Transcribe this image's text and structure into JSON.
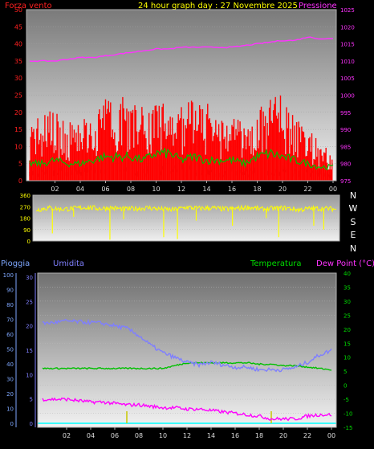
{
  "header": {
    "left_title": "Forza vento",
    "center_title": "24 hour graph day : 27 Novembre 2025",
    "right_title": "Pressione"
  },
  "colors": {
    "gust": "#ff0000",
    "avg_wind": "#00c000",
    "wind_band": "#c8ffc8",
    "pressure": "#ff33ff",
    "direction": "#ffff00",
    "humidity": "#7f7fff",
    "temperature": "#00c000",
    "dewpoint": "#ff00ff",
    "rain": "#00ffff",
    "rain_rate": "#c8c800",
    "left_axis_text": "#ff2020",
    "right_axis_text": "#ff33ff",
    "temp_axis_text": "#00dd00",
    "rain_axis_text": "#7fa8ff"
  },
  "x_ticks": [
    "02",
    "04",
    "06",
    "08",
    "10",
    "12",
    "14",
    "16",
    "18",
    "20",
    "22",
    "00"
  ],
  "chart_data": [
    {
      "type": "area",
      "title": "24 hour graph day : 27 Novembre 2025",
      "y_label_left": "Forza vento",
      "y_label_right": "Pressione",
      "left_ticks": [
        "0",
        "5",
        "10",
        "15",
        "20",
        "25",
        "30",
        "35",
        "40",
        "45",
        "50"
      ],
      "right_ticks": [
        "975",
        "980",
        "985",
        "990",
        "995",
        "1000",
        "1005",
        "1010",
        "1015",
        "1020",
        "1025"
      ],
      "ylim": [
        0,
        50
      ],
      "ylim_right": [
        975,
        1025
      ],
      "x_hours": [
        0,
        1,
        2,
        3,
        4,
        5,
        6,
        7,
        8,
        9,
        10,
        11,
        12,
        13,
        14,
        15,
        16,
        17,
        18,
        19,
        20,
        21,
        22,
        23,
        24
      ],
      "series": [
        {
          "name": "Forza vento",
          "values": [
            17,
            18,
            20,
            15,
            18,
            20,
            22,
            24,
            21,
            20,
            22,
            23,
            20,
            22,
            21,
            17,
            18,
            16,
            20,
            28,
            22,
            19,
            14,
            10,
            8
          ]
        },
        {
          "name": "Pressione",
          "values": [
            1010,
            1010,
            1010,
            1010.5,
            1011,
            1011,
            1011.5,
            1012,
            1012.5,
            1013,
            1013.5,
            1013.5,
            1014,
            1014,
            1014,
            1014,
            1014,
            1014.5,
            1015,
            1015.5,
            1016,
            1016,
            1017,
            1016.5,
            1016.5
          ]
        }
      ],
      "avg_wind": [
        5,
        5,
        6,
        5,
        5,
        6,
        7,
        7,
        7,
        6,
        8,
        8,
        6,
        7,
        6,
        6,
        6,
        5,
        7,
        8,
        7,
        6,
        5,
        4,
        4
      ],
      "wind_band": [
        3,
        3,
        4,
        3,
        3,
        4,
        4,
        4,
        4,
        3,
        5,
        5,
        4,
        4,
        3,
        3,
        3,
        3,
        4,
        5,
        4,
        3,
        3,
        2,
        2
      ]
    },
    {
      "type": "line",
      "title": "",
      "ticks_left": [
        "0",
        "90",
        "180",
        "270",
        "360"
      ],
      "directions": [
        "N",
        "W",
        "S",
        "E",
        "N"
      ],
      "ylim": [
        0,
        360
      ],
      "series": [
        {
          "name": "",
          "values": [
            245,
            260,
            250,
            255,
            265,
            255,
            260,
            250,
            255,
            260,
            250,
            245,
            265,
            255,
            260,
            250,
            255,
            265,
            250,
            255,
            260,
            245,
            255,
            255,
            250
          ]
        }
      ],
      "dips": [
        [
          1.3,
          60
        ],
        [
          3.0,
          190
        ],
        [
          5.9,
          10
        ],
        [
          7.0,
          170
        ],
        [
          10.2,
          30
        ],
        [
          11.3,
          15
        ],
        [
          12.8,
          160
        ],
        [
          15.7,
          120
        ],
        [
          18.4,
          180
        ],
        [
          19.4,
          30
        ],
        [
          22.2,
          120
        ],
        [
          23.0,
          90
        ]
      ]
    },
    {
      "type": "line",
      "title": "",
      "legend": [
        "Pioggia",
        "Umidita",
        "Temperatura",
        "Dew Point (°C)"
      ],
      "rain_ticks": [
        "0",
        "10",
        "20",
        "30",
        "40",
        "50",
        "60",
        "70",
        "80",
        "90",
        "100"
      ],
      "humidity_ticks": [
        "0",
        "5",
        "10",
        "15",
        "20",
        "25",
        "30"
      ],
      "temp_ticks": [
        "-15",
        "-10",
        "-5",
        "0",
        "5",
        "10",
        "15",
        "20",
        "25",
        "30",
        "35",
        "40"
      ],
      "ylim_temp": [
        -15,
        40
      ],
      "x_hours": [
        0,
        1,
        2,
        3,
        4,
        5,
        6,
        7,
        8,
        9,
        10,
        11,
        12,
        13,
        14,
        15,
        16,
        17,
        18,
        19,
        20,
        21,
        22,
        23,
        24
      ],
      "series": [
        {
          "name": "Umidita",
          "values": [
            20.5,
            20.7,
            21.0,
            20.8,
            20.7,
            20.5,
            20.0,
            19.5,
            18.0,
            16.0,
            14.5,
            13.5,
            12.5,
            12.0,
            12.5,
            12.0,
            11.5,
            11.5,
            11.0,
            11.0,
            11.0,
            11.5,
            12.5,
            14.0,
            15.0
          ]
        },
        {
          "name": "Temperatura",
          "values": [
            6,
            6,
            6,
            6,
            6,
            6,
            6,
            6,
            6,
            6,
            6,
            7,
            8,
            8,
            8,
            8,
            8,
            8,
            7.5,
            7.5,
            7,
            7,
            6.5,
            6,
            5.5
          ]
        },
        {
          "name": "Dew Point (°C)",
          "values": [
            -5,
            -5,
            -5,
            -5.5,
            -6,
            -6,
            -6.5,
            -7,
            -7,
            -7.5,
            -8,
            -8,
            -8.5,
            -8.5,
            -9,
            -9.5,
            -10,
            -10.5,
            -11,
            -12,
            -12,
            -12,
            -11,
            -10.5,
            -10.5
          ]
        },
        {
          "name": "Pioggia",
          "values": [
            0,
            0,
            0,
            0,
            0,
            0,
            0,
            0,
            0,
            0,
            0,
            0,
            0,
            0,
            0,
            0,
            0,
            0,
            0,
            0,
            0,
            0,
            0,
            0,
            0
          ]
        }
      ],
      "rain_rate_spikes": [
        [
          7.0,
          -11
        ],
        [
          19.0,
          -11
        ]
      ]
    }
  ],
  "legend_bottom": {
    "rain": "Pioggia",
    "humidity": "Umidita",
    "temperature": "Temperatura",
    "dewpoint": "Dew Point (°C)"
  }
}
